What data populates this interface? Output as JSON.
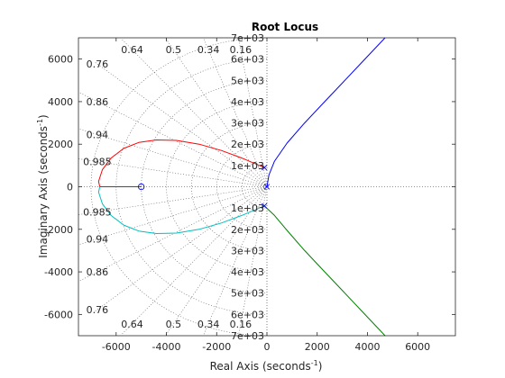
{
  "chart_data": {
    "type": "line",
    "title": "Root Locus",
    "xlabel": {
      "main": "Real Axis (seconds",
      "sup": "-1",
      "close": ")"
    },
    "ylabel": {
      "main": "Imaginary Axis (seconds",
      "sup": "-1",
      "close": ")"
    },
    "xlim": [
      -7500,
      7500
    ],
    "ylim": [
      -7000,
      7000
    ],
    "xticks": [
      -6000,
      -4000,
      -2000,
      0,
      2000,
      4000,
      6000
    ],
    "yticks": [
      -6000,
      -4000,
      -2000,
      0,
      2000,
      4000,
      6000
    ],
    "grid": "on",
    "damping_grid": {
      "zeta": [
        0.985,
        0.94,
        0.86,
        0.76,
        0.64,
        0.5,
        0.34,
        0.16
      ],
      "zeta_labels": [
        "0.985",
        "0.94",
        "0.86",
        "0.76",
        "0.64",
        "0.5",
        "0.34",
        "0.16"
      ],
      "wn": [
        1000,
        2000,
        3000,
        4000,
        5000,
        6000,
        7000
      ],
      "wn_labels_upper": [
        "1e+03",
        "2e+03",
        "3e+03",
        "4e+03",
        "5e+03",
        "6e+03",
        "7e+03"
      ],
      "wn_labels_lower": [
        "1e+03",
        "2e+03",
        "3e+03",
        "4e+03",
        "5e+03",
        "6e+03",
        "7e+03"
      ]
    },
    "poles": [
      [
        0,
        0
      ],
      [
        -100,
        900
      ],
      [
        -100,
        -900
      ]
    ],
    "zeros": [
      [
        -5000,
        0
      ]
    ],
    "series": [
      {
        "color": "#ff0000",
        "x": [
          -100,
          -400,
          -1000,
          -1800,
          -2700,
          -3600,
          -4400,
          -5100,
          -5700,
          -6200,
          -6550,
          -6700,
          -6650
        ],
        "y": [
          900,
          1050,
          1350,
          1700,
          2000,
          2180,
          2200,
          2080,
          1800,
          1350,
          800,
          250,
          0
        ]
      },
      {
        "color": "#00bfbf",
        "x": [
          -100,
          -400,
          -1000,
          -1800,
          -2700,
          -3600,
          -4400,
          -5100,
          -5700,
          -6200,
          -6550,
          -6700,
          -6650
        ],
        "y": [
          -900,
          -1050,
          -1350,
          -1700,
          -2000,
          -2180,
          -2200,
          -2080,
          -1800,
          -1350,
          -800,
          -250,
          0
        ]
      },
      {
        "color": "#ff0000",
        "x": [
          -6650,
          -5000
        ],
        "y": [
          0,
          0
        ]
      },
      {
        "color": "#0000ff",
        "x": [
          0,
          80,
          300,
          800,
          1500,
          2300,
          3100,
          3900,
          4700,
          5300
        ],
        "y": [
          0,
          550,
          1200,
          2050,
          3000,
          4000,
          5000,
          6000,
          7000,
          7600
        ]
      },
      {
        "color": "#008000",
        "x": [
          -100,
          80,
          300,
          800,
          1500,
          2300,
          3100,
          3900,
          4700,
          5300
        ],
        "y": [
          -900,
          -1100,
          -1350,
          -2050,
          -3000,
          -4000,
          -5000,
          -6000,
          -7000,
          -7600
        ]
      }
    ]
  }
}
